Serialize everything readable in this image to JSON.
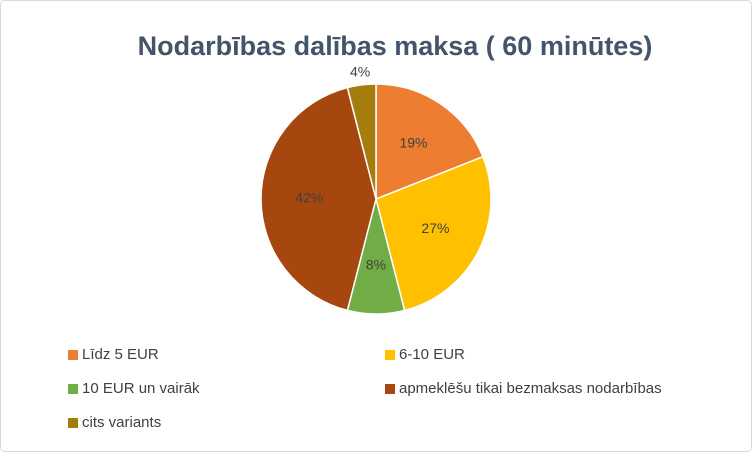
{
  "chart_data": {
    "type": "pie",
    "title": "Nodarbības dalības maksa ( 60 minūtes)",
    "categories": [
      "Līdz 5 EUR",
      "6-10 EUR",
      "10 EUR un vairāk",
      "apmeklēšu tikai bezmaksas nodarbības",
      "cits variants"
    ],
    "values": [
      19,
      27,
      8,
      42,
      4
    ],
    "value_labels": [
      "19%",
      "27%",
      "8%",
      "42%",
      "4%"
    ],
    "colors": [
      "#ed7d31",
      "#ffc000",
      "#70ad47",
      "#a5470f",
      "#a47d0c"
    ],
    "legend": "bottom"
  }
}
